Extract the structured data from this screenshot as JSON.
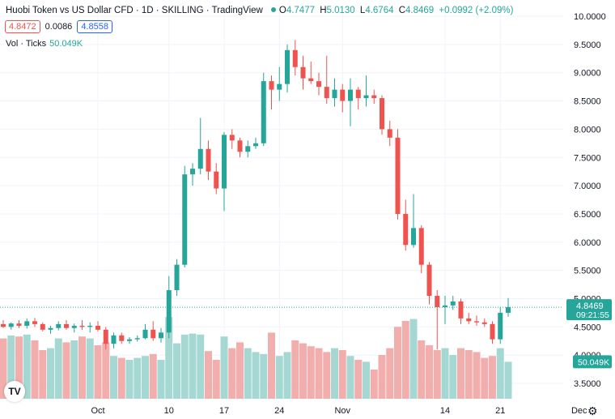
{
  "header": {
    "title": "Huobi Token vs US Dollar CFD · 1D · SKILLING · TradingView",
    "o_label": "O",
    "o_value": "4.7477",
    "h_label": "H",
    "h_value": "5.0130",
    "l_label": "L",
    "l_value": "4.6764",
    "c_label": "C",
    "c_value": "4.8469",
    "change": "+0.0992 (+2.09%)",
    "bid": "4.8472",
    "spread": "0.0086",
    "ask": "4.8558"
  },
  "volume_legend": {
    "label": "Vol · Ticks",
    "value": "50.049K"
  },
  "logo_text": "TV",
  "colors": {
    "up": "#26a69a",
    "down": "#ef5350",
    "up_vol": "#a6d8d3",
    "down_vol": "#f2aeac",
    "grid": "#f0f3fa",
    "axis_text": "#131722"
  },
  "chart_data": {
    "type": "candlestick",
    "y_axis": {
      "ticks": [
        "10.0000",
        "9.5000",
        "9.0000",
        "8.5000",
        "8.0000",
        "7.5000",
        "7.0000",
        "6.5000",
        "6.0000",
        "5.5000",
        "5.0000",
        "4.5000",
        "4.0000",
        "3.5000"
      ],
      "range": [
        3.3,
        10.1
      ]
    },
    "x_axis": {
      "ticks": [
        {
          "label": "Oct",
          "index": 12
        },
        {
          "label": "10",
          "index": 21
        },
        {
          "label": "17",
          "index": 28
        },
        {
          "label": "24",
          "index": 35
        },
        {
          "label": "Nov",
          "index": 43
        },
        {
          "label": "14",
          "index": 56
        },
        {
          "label": "21",
          "index": 63
        },
        {
          "label": "Dec",
          "index": 73
        }
      ]
    },
    "last_price": "4.8469",
    "countdown": "09:21:55",
    "volume_last_label": "50.049K",
    "candles": [
      {
        "o": 4.55,
        "h": 4.62,
        "l": 4.48,
        "c": 4.5,
        "v": 0.62
      },
      {
        "o": 4.5,
        "h": 4.58,
        "l": 4.45,
        "c": 4.56,
        "v": 0.65
      },
      {
        "o": 4.56,
        "h": 4.62,
        "l": 4.48,
        "c": 4.52,
        "v": 0.64
      },
      {
        "o": 4.52,
        "h": 4.65,
        "l": 4.47,
        "c": 4.6,
        "v": 0.66
      },
      {
        "o": 4.6,
        "h": 4.66,
        "l": 4.5,
        "c": 4.55,
        "v": 0.6
      },
      {
        "o": 4.55,
        "h": 4.58,
        "l": 4.42,
        "c": 4.45,
        "v": 0.5
      },
      {
        "o": 4.45,
        "h": 4.52,
        "l": 4.38,
        "c": 4.48,
        "v": 0.52
      },
      {
        "o": 4.48,
        "h": 4.6,
        "l": 4.44,
        "c": 4.55,
        "v": 0.62
      },
      {
        "o": 4.55,
        "h": 4.62,
        "l": 4.45,
        "c": 4.48,
        "v": 0.58
      },
      {
        "o": 4.48,
        "h": 4.56,
        "l": 4.4,
        "c": 4.52,
        "v": 0.6
      },
      {
        "o": 4.52,
        "h": 4.62,
        "l": 4.45,
        "c": 4.5,
        "v": 0.64
      },
      {
        "o": 4.5,
        "h": 4.58,
        "l": 4.4,
        "c": 4.52,
        "v": 0.62
      },
      {
        "o": 4.52,
        "h": 4.6,
        "l": 4.42,
        "c": 4.45,
        "v": 0.55
      },
      {
        "o": 4.45,
        "h": 4.5,
        "l": 4.1,
        "c": 4.2,
        "v": 0.58
      },
      {
        "o": 4.2,
        "h": 4.4,
        "l": 4.12,
        "c": 4.35,
        "v": 0.44
      },
      {
        "o": 4.35,
        "h": 4.4,
        "l": 4.2,
        "c": 4.25,
        "v": 0.42
      },
      {
        "o": 4.25,
        "h": 4.32,
        "l": 4.2,
        "c": 4.28,
        "v": 0.4
      },
      {
        "o": 4.28,
        "h": 4.35,
        "l": 4.24,
        "c": 4.3,
        "v": 0.42
      },
      {
        "o": 4.3,
        "h": 4.55,
        "l": 4.28,
        "c": 4.45,
        "v": 0.44
      },
      {
        "o": 4.45,
        "h": 4.6,
        "l": 4.25,
        "c": 4.3,
        "v": 0.46
      },
      {
        "o": 4.3,
        "h": 4.48,
        "l": 4.22,
        "c": 4.4,
        "v": 0.4
      },
      {
        "o": 4.4,
        "h": 5.4,
        "l": 4.3,
        "c": 5.15,
        "v": 0.84
      },
      {
        "o": 5.15,
        "h": 5.7,
        "l": 5.05,
        "c": 5.6,
        "v": 0.57
      },
      {
        "o": 5.6,
        "h": 7.35,
        "l": 5.55,
        "c": 7.2,
        "v": 0.66
      },
      {
        "o": 7.2,
        "h": 7.4,
        "l": 7.0,
        "c": 7.3,
        "v": 0.67
      },
      {
        "o": 7.3,
        "h": 8.2,
        "l": 7.2,
        "c": 7.65,
        "v": 0.66
      },
      {
        "o": 7.65,
        "h": 7.8,
        "l": 7.1,
        "c": 7.25,
        "v": 0.49
      },
      {
        "o": 7.25,
        "h": 7.4,
        "l": 6.85,
        "c": 6.95,
        "v": 0.4
      },
      {
        "o": 6.95,
        "h": 7.95,
        "l": 6.55,
        "c": 7.9,
        "v": 0.64
      },
      {
        "o": 7.9,
        "h": 8.0,
        "l": 7.65,
        "c": 7.8,
        "v": 0.52
      },
      {
        "o": 7.8,
        "h": 7.85,
        "l": 7.5,
        "c": 7.6,
        "v": 0.58
      },
      {
        "o": 7.6,
        "h": 7.8,
        "l": 7.5,
        "c": 7.7,
        "v": 0.52
      },
      {
        "o": 7.7,
        "h": 7.85,
        "l": 7.65,
        "c": 7.75,
        "v": 0.48
      },
      {
        "o": 7.75,
        "h": 9.0,
        "l": 7.7,
        "c": 8.85,
        "v": 0.46
      },
      {
        "o": 8.85,
        "h": 8.95,
        "l": 8.35,
        "c": 8.7,
        "v": 0.68
      },
      {
        "o": 8.7,
        "h": 9.1,
        "l": 8.5,
        "c": 8.8,
        "v": 0.44
      },
      {
        "o": 8.8,
        "h": 9.5,
        "l": 8.65,
        "c": 9.4,
        "v": 0.48
      },
      {
        "o": 9.4,
        "h": 9.58,
        "l": 8.95,
        "c": 9.1,
        "v": 0.6
      },
      {
        "o": 9.1,
        "h": 9.3,
        "l": 8.7,
        "c": 8.9,
        "v": 0.57
      },
      {
        "o": 8.9,
        "h": 9.2,
        "l": 8.8,
        "c": 8.85,
        "v": 0.54
      },
      {
        "o": 8.85,
        "h": 9.0,
        "l": 8.6,
        "c": 8.75,
        "v": 0.52
      },
      {
        "o": 8.75,
        "h": 9.3,
        "l": 8.45,
        "c": 8.55,
        "v": 0.48
      },
      {
        "o": 8.55,
        "h": 8.9,
        "l": 8.4,
        "c": 8.7,
        "v": 0.52
      },
      {
        "o": 8.7,
        "h": 8.8,
        "l": 8.3,
        "c": 8.5,
        "v": 0.5
      },
      {
        "o": 8.5,
        "h": 8.9,
        "l": 8.05,
        "c": 8.7,
        "v": 0.44
      },
      {
        "o": 8.7,
        "h": 8.75,
        "l": 8.35,
        "c": 8.55,
        "v": 0.4
      },
      {
        "o": 8.55,
        "h": 8.95,
        "l": 8.4,
        "c": 8.6,
        "v": 0.38
      },
      {
        "o": 8.6,
        "h": 8.7,
        "l": 8.45,
        "c": 8.55,
        "v": 0.3
      },
      {
        "o": 8.55,
        "h": 8.6,
        "l": 7.9,
        "c": 8.0,
        "v": 0.45
      },
      {
        "o": 8.0,
        "h": 8.15,
        "l": 7.7,
        "c": 7.85,
        "v": 0.52
      },
      {
        "o": 7.85,
        "h": 8.0,
        "l": 6.4,
        "c": 6.5,
        "v": 0.74
      },
      {
        "o": 6.5,
        "h": 6.75,
        "l": 5.85,
        "c": 5.95,
        "v": 0.8
      },
      {
        "o": 5.95,
        "h": 6.85,
        "l": 5.9,
        "c": 6.25,
        "v": 0.82
      },
      {
        "o": 6.25,
        "h": 6.3,
        "l": 5.45,
        "c": 5.6,
        "v": 0.6
      },
      {
        "o": 5.6,
        "h": 5.65,
        "l": 4.9,
        "c": 5.05,
        "v": 0.55
      },
      {
        "o": 5.05,
        "h": 5.15,
        "l": 4.1,
        "c": 4.85,
        "v": 0.5
      },
      {
        "o": 4.85,
        "h": 5.05,
        "l": 4.55,
        "c": 4.88,
        "v": 0.52
      },
      {
        "o": 4.88,
        "h": 5.05,
        "l": 4.8,
        "c": 4.95,
        "v": 0.45
      },
      {
        "o": 4.95,
        "h": 5.0,
        "l": 4.55,
        "c": 4.65,
        "v": 0.52
      },
      {
        "o": 4.65,
        "h": 4.75,
        "l": 4.55,
        "c": 4.6,
        "v": 0.5
      },
      {
        "o": 4.6,
        "h": 4.7,
        "l": 4.52,
        "c": 4.58,
        "v": 0.48
      },
      {
        "o": 4.58,
        "h": 4.65,
        "l": 4.5,
        "c": 4.55,
        "v": 0.42
      },
      {
        "o": 4.55,
        "h": 4.6,
        "l": 4.2,
        "c": 4.28,
        "v": 0.44
      },
      {
        "o": 4.28,
        "h": 4.85,
        "l": 4.2,
        "c": 4.75,
        "v": 0.52
      },
      {
        "o": 4.75,
        "h": 5.01,
        "l": 4.68,
        "c": 4.85,
        "v": 0.38
      }
    ]
  }
}
